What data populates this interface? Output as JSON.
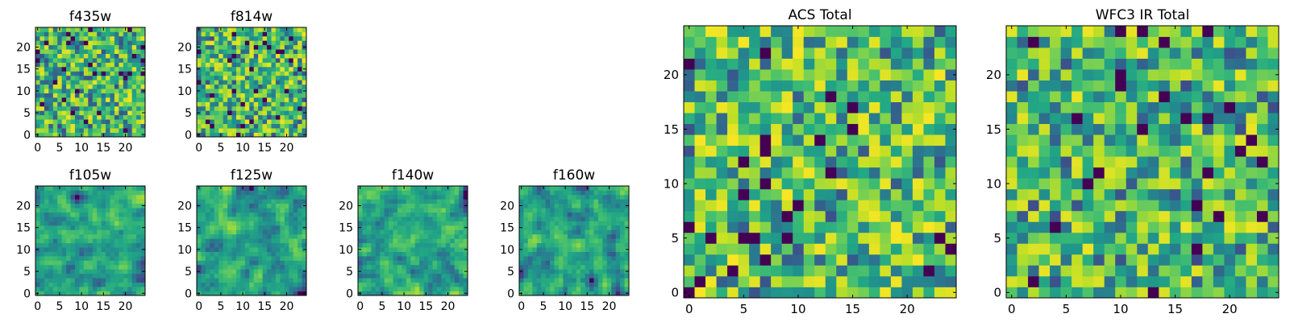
{
  "figure": {
    "description_free": true
  },
  "chart_data": [
    {
      "type": "heatmap",
      "title": "f435w",
      "grid_size": 25,
      "colormap": "viridis",
      "xticks": [
        0,
        5,
        10,
        15,
        20
      ],
      "yticks": [
        0,
        5,
        10,
        15,
        20
      ],
      "xlim": [
        -0.5,
        24.5
      ],
      "ylim": [
        -0.5,
        24.5
      ],
      "value_range": [
        0,
        1
      ],
      "seed": 11,
      "smooth": 0,
      "bias": 0.72
    },
    {
      "type": "heatmap",
      "title": "f814w",
      "grid_size": 25,
      "colormap": "viridis",
      "xticks": [
        0,
        5,
        10,
        15,
        20
      ],
      "yticks": [
        0,
        5,
        10,
        15,
        20
      ],
      "xlim": [
        -0.5,
        24.5
      ],
      "ylim": [
        -0.5,
        24.5
      ],
      "value_range": [
        0,
        1
      ],
      "seed": 23,
      "smooth": 0,
      "bias": 0.72
    },
    {
      "type": "heatmap",
      "title": "f105w",
      "grid_size": 25,
      "colormap": "viridis",
      "xticks": [
        0,
        5,
        10,
        15,
        20
      ],
      "yticks": [
        0,
        5,
        10,
        15,
        20
      ],
      "xlim": [
        -0.5,
        24.5
      ],
      "ylim": [
        -0.5,
        24.5
      ],
      "value_range": [
        0,
        1
      ],
      "seed": 37,
      "smooth": 1,
      "bias": 0.62
    },
    {
      "type": "heatmap",
      "title": "f125w",
      "grid_size": 25,
      "colormap": "viridis",
      "xticks": [
        0,
        5,
        10,
        15,
        20
      ],
      "yticks": [
        0,
        5,
        10,
        15,
        20
      ],
      "xlim": [
        -0.5,
        24.5
      ],
      "ylim": [
        -0.5,
        24.5
      ],
      "value_range": [
        0,
        1
      ],
      "seed": 41,
      "smooth": 1,
      "bias": 0.62
    },
    {
      "type": "heatmap",
      "title": "f140w",
      "grid_size": 25,
      "colormap": "viridis",
      "xticks": [
        0,
        5,
        10,
        15,
        20
      ],
      "yticks": [
        0,
        5,
        10,
        15,
        20
      ],
      "xlim": [
        -0.5,
        24.5
      ],
      "ylim": [
        -0.5,
        24.5
      ],
      "value_range": [
        0,
        1
      ],
      "seed": 53,
      "smooth": 1,
      "bias": 0.62
    },
    {
      "type": "heatmap",
      "title": "f160w",
      "grid_size": 25,
      "colormap": "viridis",
      "xticks": [
        0,
        5,
        10,
        15,
        20
      ],
      "yticks": [
        0,
        5,
        10,
        15,
        20
      ],
      "xlim": [
        -0.5,
        24.5
      ],
      "ylim": [
        -0.5,
        24.5
      ],
      "value_range": [
        0,
        1
      ],
      "seed": 67,
      "smooth": 1,
      "bias": 0.58
    },
    {
      "type": "heatmap",
      "title": "ACS Total",
      "grid_size": 25,
      "colormap": "viridis",
      "xticks": [
        0,
        5,
        10,
        15,
        20
      ],
      "yticks": [
        0,
        5,
        10,
        15,
        20
      ],
      "xlim": [
        -0.5,
        24.5
      ],
      "ylim": [
        -0.5,
        24.5
      ],
      "value_range": [
        0,
        1
      ],
      "seed": 79,
      "smooth": 0,
      "bias": 0.74
    },
    {
      "type": "heatmap",
      "title": "WFC3 IR Total",
      "grid_size": 25,
      "colormap": "viridis",
      "xticks": [
        0,
        5,
        10,
        15,
        20
      ],
      "yticks": [
        0,
        5,
        10,
        15,
        20
      ],
      "xlim": [
        -0.5,
        24.5
      ],
      "ylim": [
        -0.5,
        24.5
      ],
      "value_range": [
        0,
        1
      ],
      "seed": 97,
      "smooth": 0,
      "bias": 0.72
    }
  ]
}
